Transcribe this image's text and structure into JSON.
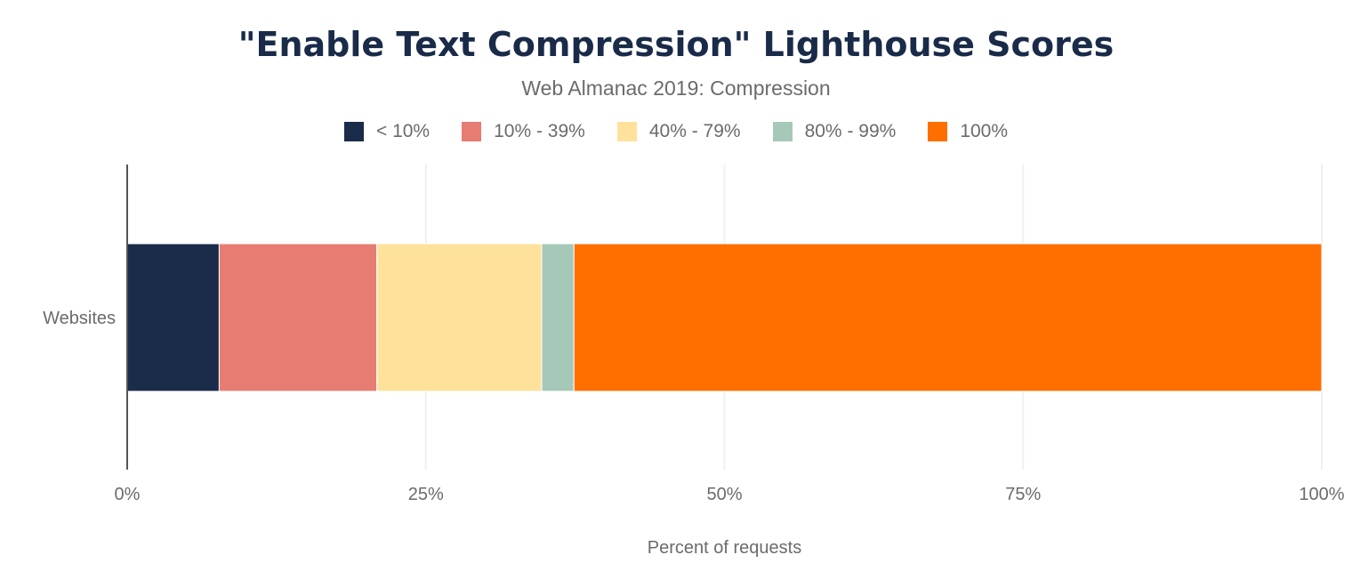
{
  "chart_data": {
    "type": "bar",
    "orientation": "horizontal",
    "stacked": true,
    "title": "\"Enable Text Compression\" Lighthouse Scores",
    "subtitle": "Web Almanac 2019: Compression",
    "categories": [
      "Websites"
    ],
    "series": [
      {
        "name": "< 10%",
        "values": [
          7.7
        ],
        "color": "#1b2b4a"
      },
      {
        "name": "10% - 39%",
        "values": [
          13.2
        ],
        "color": "#e77c73"
      },
      {
        "name": "40% - 79%",
        "values": [
          13.8
        ],
        "color": "#fee29b"
      },
      {
        "name": "80% - 99%",
        "values": [
          2.7
        ],
        "color": "#a6c8b8"
      },
      {
        "name": "100%",
        "values": [
          62.6
        ],
        "color": "#ff6f00"
      }
    ],
    "xlabel": "Percent of requests",
    "ylabel": "",
    "xlim": [
      0,
      100
    ],
    "xticks": [
      "0%",
      "25%",
      "50%",
      "75%",
      "100%"
    ],
    "grid": true,
    "legend": "top"
  }
}
